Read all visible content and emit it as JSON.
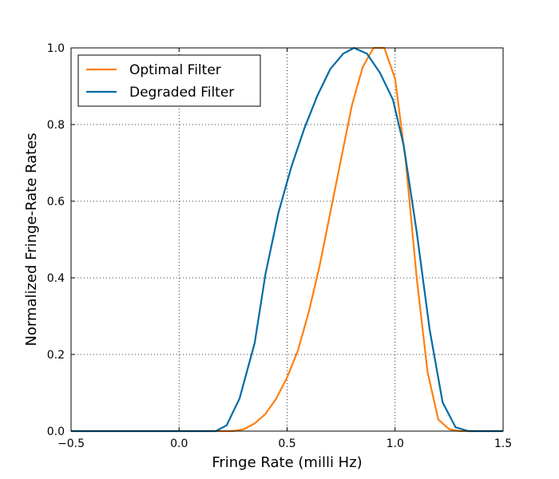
{
  "chart_data": {
    "type": "line",
    "title": "",
    "xlabel": "Fringe Rate (milli Hz)",
    "ylabel": "Normalized Fringe-Rate Rates",
    "xlim": [
      -0.5,
      1.5
    ],
    "ylim": [
      0.0,
      1.0
    ],
    "xticks": [
      "−0.5",
      "0.0",
      "0.5",
      "1.0",
      "1.5"
    ],
    "xtick_values": [
      -0.5,
      0.0,
      0.5,
      1.0,
      1.5
    ],
    "yticks": [
      "0.0",
      "0.2",
      "0.4",
      "0.6",
      "0.8",
      "1.0"
    ],
    "ytick_values": [
      0.0,
      0.2,
      0.4,
      0.6,
      0.8,
      1.0
    ],
    "grid": true,
    "legend_position": "top-left",
    "series": [
      {
        "name": "Optimal Filter",
        "color": "#ff7f0e",
        "x": [
          -0.5,
          0.2,
          0.25,
          0.3,
          0.35,
          0.4,
          0.45,
          0.5,
          0.55,
          0.6,
          0.65,
          0.7,
          0.75,
          0.8,
          0.85,
          0.9,
          0.95,
          1.0,
          1.05,
          1.1,
          1.15,
          1.2,
          1.25,
          1.3,
          1.5
        ],
        "y": [
          0.0,
          0.0,
          0.0,
          0.005,
          0.02,
          0.045,
          0.085,
          0.14,
          0.21,
          0.31,
          0.43,
          0.57,
          0.71,
          0.85,
          0.95,
          1.0,
          1.0,
          0.92,
          0.7,
          0.4,
          0.155,
          0.03,
          0.005,
          0.0,
          0.0
        ]
      },
      {
        "name": "Degraded Filter",
        "color": "#006ba4",
        "x": [
          -0.5,
          0.17,
          0.22,
          0.28,
          0.35,
          0.4,
          0.46,
          0.52,
          0.58,
          0.64,
          0.7,
          0.76,
          0.81,
          0.87,
          0.93,
          0.99,
          1.04,
          1.1,
          1.16,
          1.22,
          1.28,
          1.34,
          1.5
        ],
        "y": [
          0.0,
          0.0,
          0.015,
          0.085,
          0.23,
          0.41,
          0.57,
          0.69,
          0.79,
          0.875,
          0.945,
          0.985,
          1.0,
          0.985,
          0.935,
          0.865,
          0.745,
          0.52,
          0.265,
          0.075,
          0.01,
          0.0,
          0.0
        ]
      }
    ]
  }
}
